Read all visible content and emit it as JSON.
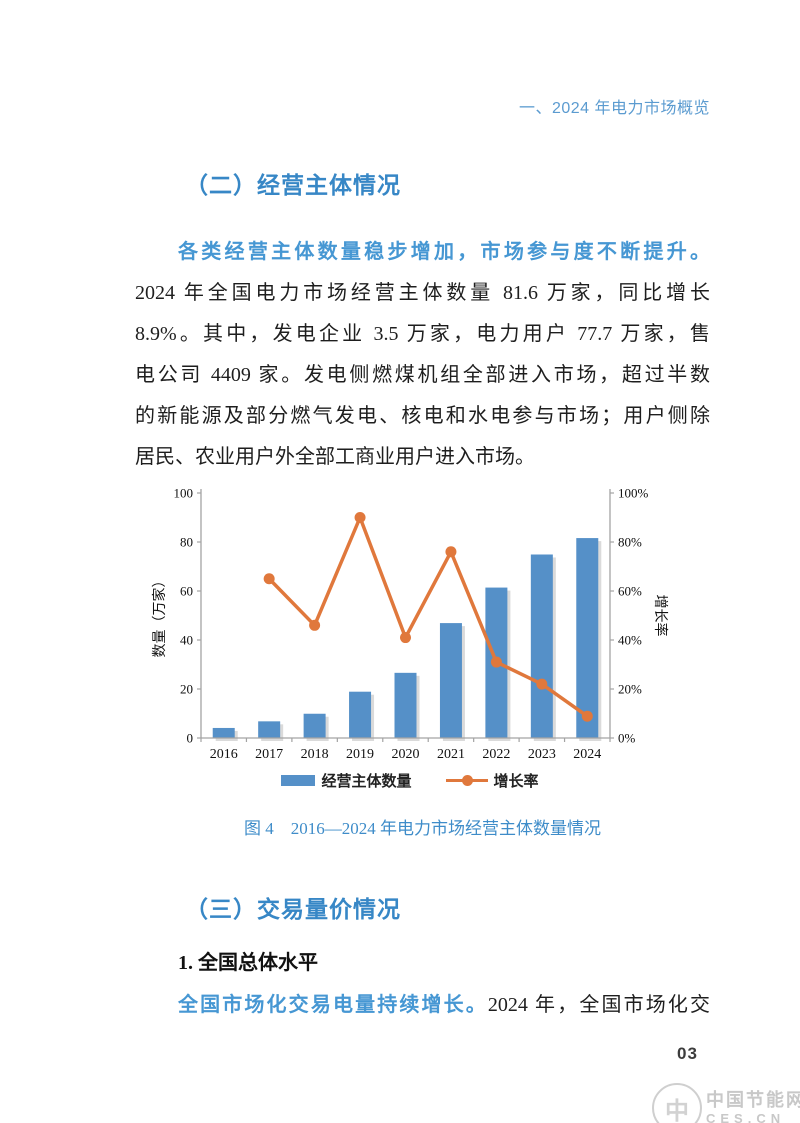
{
  "page": {
    "header": "一、2024 年电力市场概览",
    "accent_colors": {
      "heading_blue": "#3787c6",
      "lead_blue": "#4697d3",
      "header_blue": "#5b9bd0",
      "caption_blue": "#3e8cc9"
    }
  },
  "section_entities": {
    "heading": "（二）经营主体情况",
    "lead": "各类经营主体数量稳步增加，市场参与度不断提升。",
    "lines": [
      "2024 年全国电力市场经营主体数量 81.6 万家，同比增长",
      "8.9%。其中，发电企业 3.5 万家，电力用户 77.7 万家，售",
      "电公司 4409 家。发电侧燃煤机组全部进入市场，超过半数",
      "的新能源及部分燃气发电、核电和水电参与市场；用户侧除",
      "居民、农业用户外全部工商业用户进入市场。"
    ]
  },
  "figure": {
    "caption": "图 4　2016—2024 年电力市场经营主体数量情况"
  },
  "chart_data": {
    "type": "bar+line",
    "categories": [
      "2016",
      "2017",
      "2018",
      "2019",
      "2020",
      "2021",
      "2022",
      "2023",
      "2024"
    ],
    "series": [
      {
        "name": "经营主体数量",
        "type": "bar",
        "axis": "left",
        "color": "#5590c8",
        "values": [
          4.1,
          6.8,
          9.9,
          18.9,
          26.6,
          46.9,
          61.4,
          74.9,
          81.6
        ]
      },
      {
        "name": "增长率",
        "type": "line",
        "axis": "right",
        "color": "#e0783c",
        "unit": "%",
        "values": [
          null,
          65,
          46,
          90,
          41,
          76,
          31,
          22,
          8.9
        ]
      }
    ],
    "left_axis": {
      "title": "数量（万家）",
      "min": 0,
      "max": 100,
      "ticks": [
        0,
        20,
        40,
        60,
        80,
        100
      ]
    },
    "right_axis": {
      "title": "增长率",
      "min": 0,
      "max": 100,
      "tick_labels": [
        "0%",
        "20%",
        "40%",
        "60%",
        "80%",
        "100%"
      ]
    },
    "grid": false,
    "legend_position": "bottom"
  },
  "section_trading": {
    "heading": "（三）交易量价情况",
    "subheading": "1. 全国总体水平",
    "lead": "全国市场化交易电量持续增长。",
    "lead_rest": "2024 年，全国市场化交"
  },
  "footer": {
    "page_number": "03",
    "watermark_title": "中国节能网",
    "watermark_domain": "CES.CN",
    "watermark_logo_glyph": "中"
  }
}
